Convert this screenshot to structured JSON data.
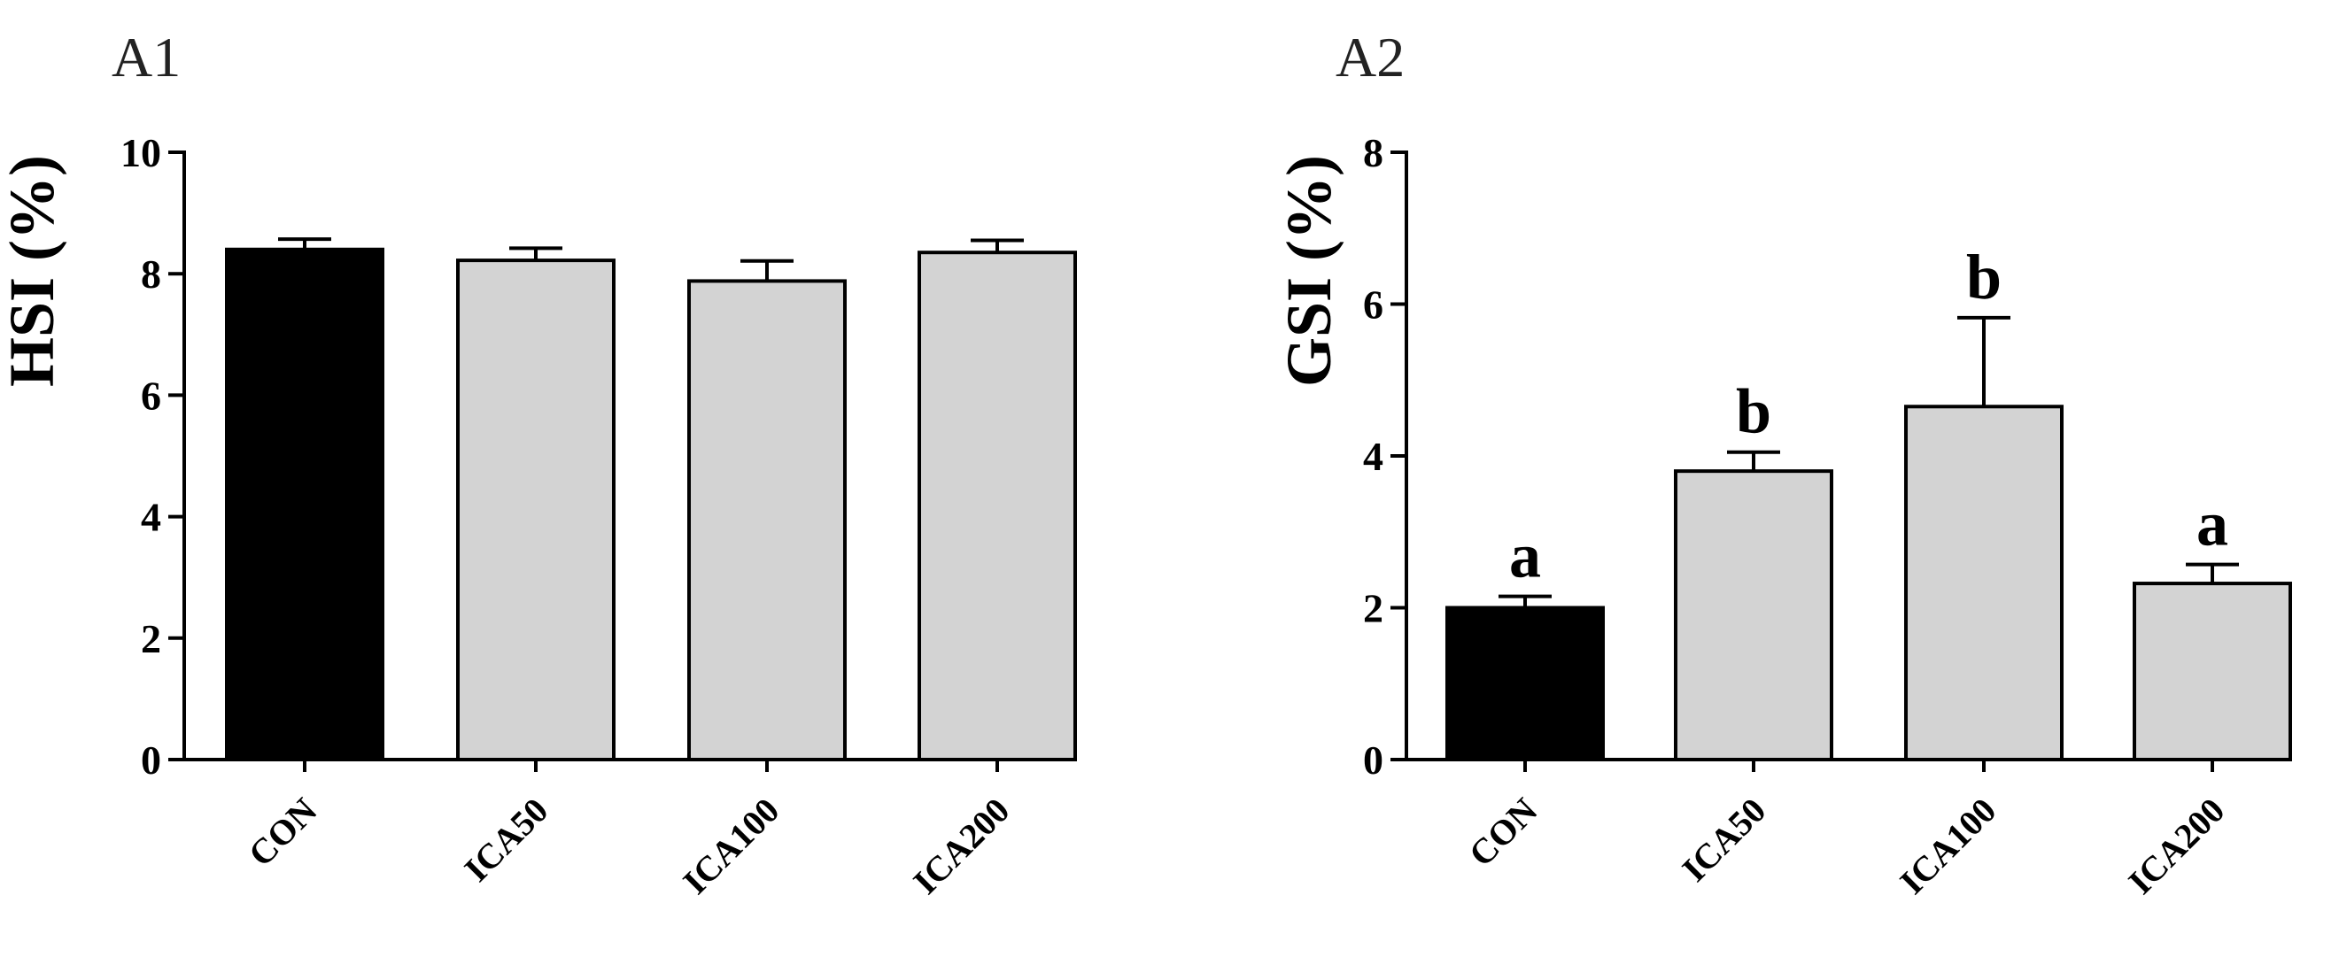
{
  "chart_data": [
    {
      "type": "bar",
      "panel_label": "A1",
      "ylabel": "HSI (%)",
      "ylim": [
        0,
        10
      ],
      "yticks": [
        "0",
        "2",
        "4",
        "6",
        "8",
        "10"
      ],
      "categories": [
        "CON",
        "ICA50",
        "ICA100",
        "ICA200"
      ],
      "values": [
        8.4,
        8.22,
        7.88,
        8.35
      ],
      "errors": [
        0.17,
        0.2,
        0.33,
        0.2
      ],
      "bar_colors": [
        "#000000",
        "#d3d3d3",
        "#d3d3d3",
        "#d3d3d3"
      ],
      "significance": [
        "",
        "",
        "",
        ""
      ],
      "grid": false
    },
    {
      "type": "bar",
      "panel_label": "A2",
      "ylabel": "GSI (%)",
      "ylim": [
        0,
        8
      ],
      "yticks": [
        "0",
        "2",
        "4",
        "6",
        "8"
      ],
      "categories": [
        "CON",
        "ICA50",
        "ICA100",
        "ICA200"
      ],
      "values": [
        2.0,
        3.8,
        4.65,
        2.32
      ],
      "errors": [
        0.15,
        0.25,
        1.17,
        0.25
      ],
      "bar_colors": [
        "#000000",
        "#d3d3d3",
        "#d3d3d3",
        "#d3d3d3"
      ],
      "significance": [
        "a",
        "b",
        "b",
        "a"
      ],
      "grid": false
    }
  ]
}
